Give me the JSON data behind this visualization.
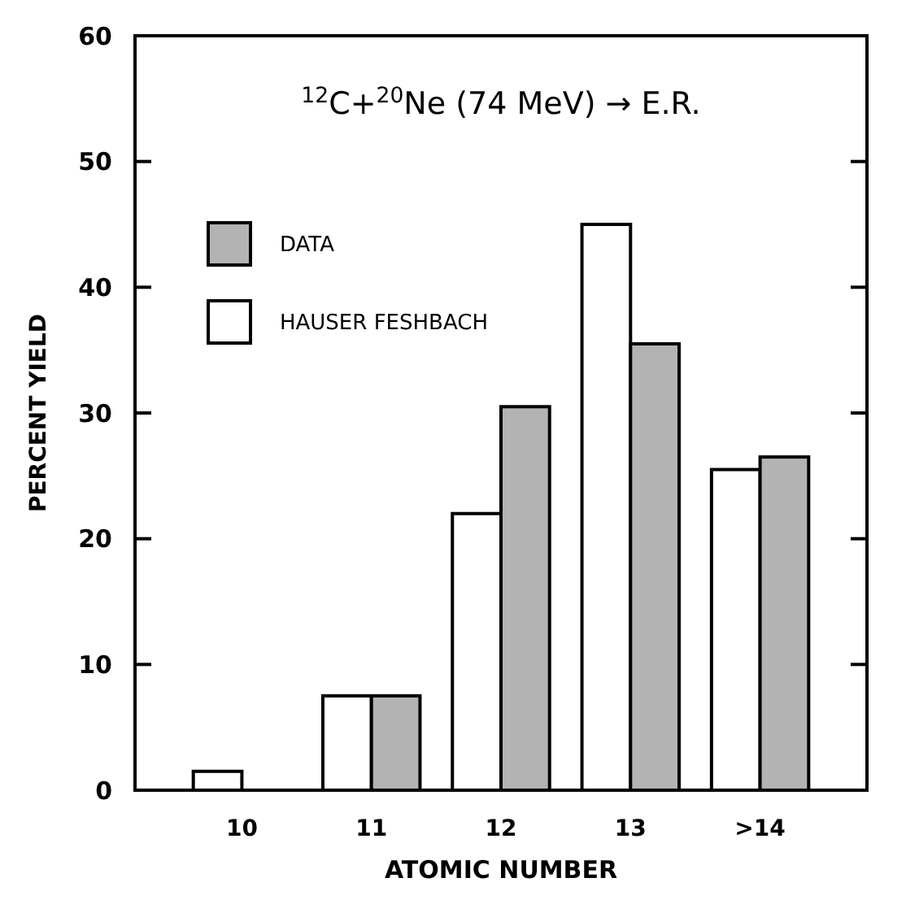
{
  "chart_data": {
    "type": "bar",
    "title": "$^{12}$C+$^{20}$Ne (74 MeV) → E.R.",
    "xlabel": "ATOMIC NUMBER",
    "ylabel": "PERCENT YIELD",
    "categories": [
      "10",
      "11",
      "12",
      "13",
      ">14"
    ],
    "series": [
      {
        "name": "HAUSER FESHBACH",
        "color": "#ffffff",
        "values": [
          1.5,
          7.5,
          22,
          45,
          25.5
        ]
      },
      {
        "name": "DATA",
        "color": "#b3b3b3",
        "values": [
          null,
          7.5,
          30.5,
          35.5,
          26.5
        ]
      }
    ],
    "ylim": [
      0,
      60
    ],
    "yticks": [
      0,
      10,
      20,
      30,
      40,
      50,
      60
    ],
    "grid": false,
    "legend": "top left"
  }
}
